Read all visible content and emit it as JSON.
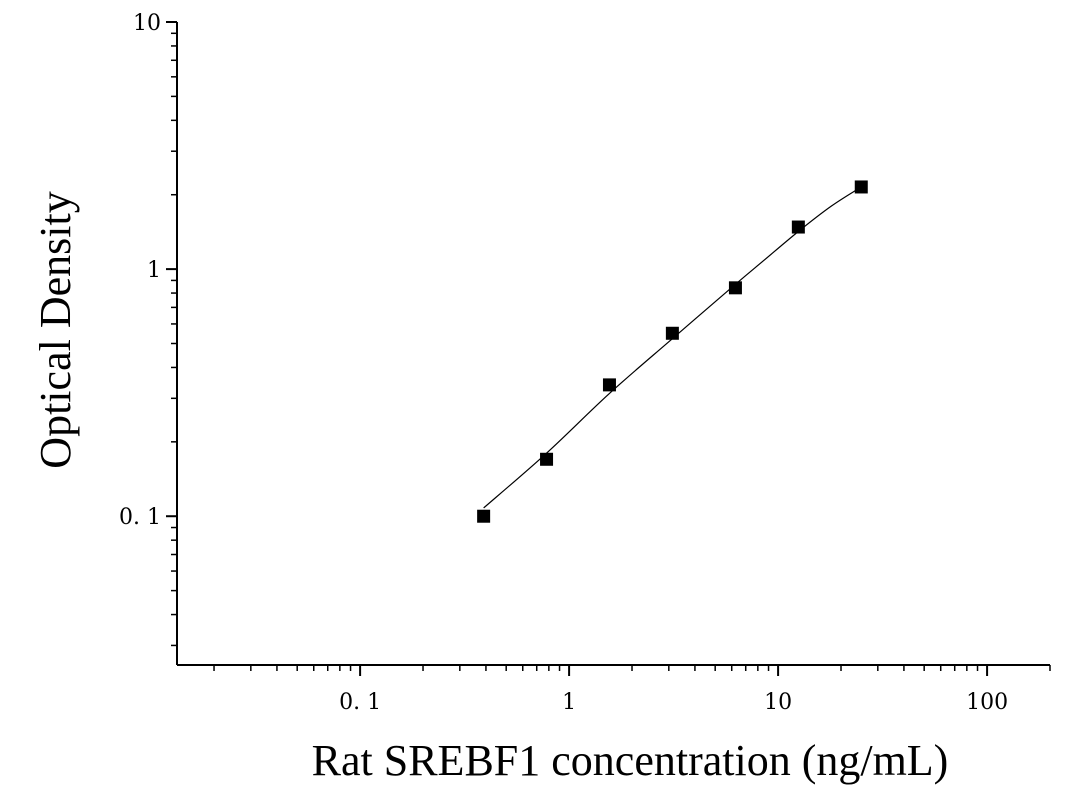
{
  "chart_data": {
    "type": "scatter",
    "title": "",
    "xlabel": "Rat SREBF1 concentration (ng/mL)",
    "ylabel": "Optical Density",
    "x_scale": "log",
    "y_scale": "log",
    "xlim": [
      0.0133,
      200
    ],
    "ylim": [
      0.025,
      10
    ],
    "x_ticks": [
      {
        "value": 0.1,
        "label": "0. 1"
      },
      {
        "value": 1,
        "label": "1"
      },
      {
        "value": 10,
        "label": "10"
      },
      {
        "value": 100,
        "label": "100"
      }
    ],
    "y_ticks": [
      {
        "value": 0.1,
        "label": "0. 1"
      },
      {
        "value": 1,
        "label": "1"
      },
      {
        "value": 10,
        "label": "10"
      }
    ],
    "grid": false,
    "legend": "none",
    "series": [
      {
        "marker": "square",
        "color": "#000000",
        "x": [
          0.39,
          0.78,
          1.56,
          3.12,
          6.25,
          12.5,
          25
        ],
        "y": [
          0.1,
          0.17,
          0.34,
          0.55,
          0.84,
          1.48,
          2.15
        ]
      }
    ],
    "fit_curve": {
      "color": "#000000",
      "x": [
        0.39,
        0.78,
        1.56,
        3.12,
        6.25,
        8.5,
        12.5,
        18,
        25
      ],
      "y": [
        0.108,
        0.18,
        0.314,
        0.523,
        0.868,
        1.08,
        1.42,
        1.8,
        2.15
      ]
    }
  }
}
